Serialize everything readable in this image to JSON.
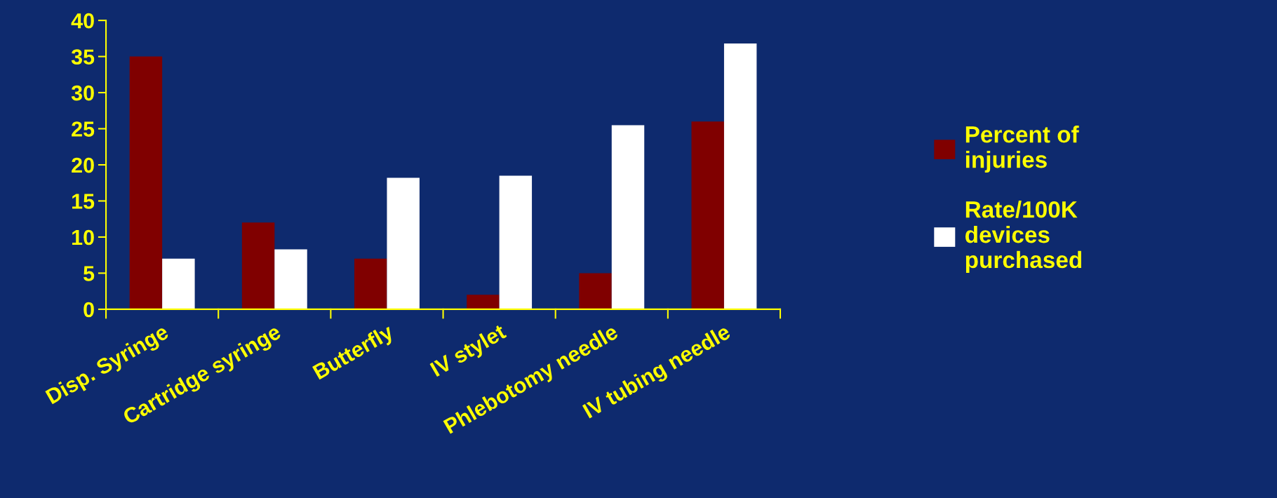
{
  "chart_data": {
    "type": "bar",
    "categories": [
      "Disp. Syringe",
      "Cartridge syringe",
      "Butterfly",
      "IV stylet",
      "Phlebotomy needle",
      "IV tubing needle"
    ],
    "series": [
      {
        "name": "Percent of\ninjuries",
        "color": "#800000",
        "values": [
          35,
          12,
          7,
          2,
          5,
          26
        ]
      },
      {
        "name": "Rate/100K\ndevices\npurchased",
        "color": "#ffffff",
        "values": [
          7,
          8.3,
          18.2,
          18.5,
          25.5,
          36.8
        ]
      }
    ],
    "ylim": [
      0,
      40
    ],
    "yticks": [
      0,
      5,
      10,
      15,
      20,
      25,
      30,
      35,
      40
    ],
    "grid": false,
    "legend": "right"
  }
}
